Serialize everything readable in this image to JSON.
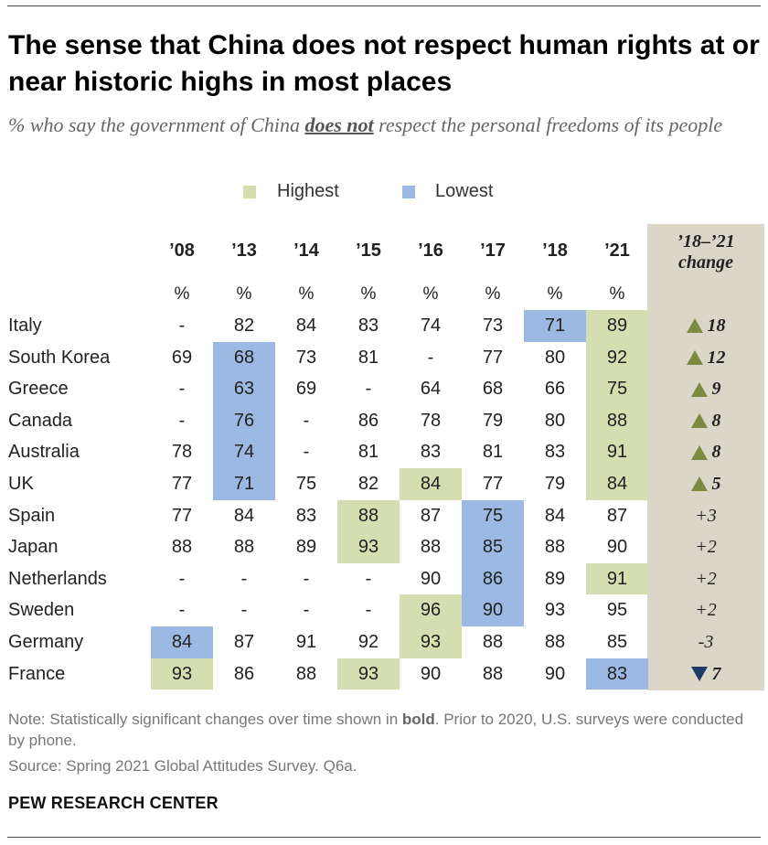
{
  "header": {
    "title": "The sense that China does not respect human rights at or near historic highs in most places",
    "subtitle_pre": "% who say the government of China ",
    "subtitle_emph": "does not",
    "subtitle_post": " respect the personal freedoms of its people"
  },
  "legend": {
    "highest_label": "Highest",
    "lowest_label": "Lowest",
    "highest_color": "#d5deb0",
    "lowest_color": "#9bb9e2"
  },
  "chart_data": {
    "type": "table",
    "title": "The sense that China does not respect human rights at or near historic highs in most places",
    "columns": [
      "’08",
      "’13",
      "’14",
      "’15",
      "’16",
      "’17",
      "’18",
      "’21"
    ],
    "unit_label": "%",
    "change_header_line1": "’18–’21",
    "change_header_line2": "change",
    "rows": [
      {
        "country": "Italy",
        "values": [
          "-",
          "82",
          "84",
          "83",
          "74",
          "73",
          "71",
          "89"
        ],
        "highest": [
          7
        ],
        "lowest": [
          6
        ],
        "change": {
          "text": "18",
          "dir": "up",
          "bold": true
        }
      },
      {
        "country": "South Korea",
        "values": [
          "69",
          "68",
          "73",
          "81",
          "-",
          "77",
          "80",
          "92"
        ],
        "highest": [
          7
        ],
        "lowest": [
          1
        ],
        "change": {
          "text": "12",
          "dir": "up",
          "bold": true
        }
      },
      {
        "country": "Greece",
        "values": [
          "-",
          "63",
          "69",
          "-",
          "64",
          "68",
          "66",
          "75"
        ],
        "highest": [
          7
        ],
        "lowest": [
          1
        ],
        "change": {
          "text": "9",
          "dir": "up",
          "bold": true
        }
      },
      {
        "country": "Canada",
        "values": [
          "-",
          "76",
          "-",
          "86",
          "78",
          "79",
          "80",
          "88"
        ],
        "highest": [
          7
        ],
        "lowest": [
          1
        ],
        "change": {
          "text": "8",
          "dir": "up",
          "bold": true
        }
      },
      {
        "country": "Australia",
        "values": [
          "78",
          "74",
          "-",
          "81",
          "83",
          "81",
          "83",
          "91"
        ],
        "highest": [
          7
        ],
        "lowest": [
          1
        ],
        "change": {
          "text": "8",
          "dir": "up",
          "bold": true
        }
      },
      {
        "country": "UK",
        "values": [
          "77",
          "71",
          "75",
          "82",
          "84",
          "77",
          "79",
          "84"
        ],
        "highest": [
          4,
          7
        ],
        "lowest": [
          1
        ],
        "change": {
          "text": "5",
          "dir": "up",
          "bold": true
        }
      },
      {
        "country": "Spain",
        "values": [
          "77",
          "84",
          "83",
          "88",
          "87",
          "75",
          "84",
          "87"
        ],
        "highest": [
          3
        ],
        "lowest": [
          5
        ],
        "change": {
          "text": "+3",
          "dir": "none",
          "bold": false
        }
      },
      {
        "country": "Japan",
        "values": [
          "88",
          "88",
          "89",
          "93",
          "88",
          "85",
          "88",
          "90"
        ],
        "highest": [
          3
        ],
        "lowest": [
          5
        ],
        "change": {
          "text": "+2",
          "dir": "none",
          "bold": false
        }
      },
      {
        "country": "Netherlands",
        "values": [
          "-",
          "-",
          "-",
          "-",
          "90",
          "86",
          "89",
          "91"
        ],
        "highest": [
          7
        ],
        "lowest": [
          5
        ],
        "change": {
          "text": "+2",
          "dir": "none",
          "bold": false
        }
      },
      {
        "country": "Sweden",
        "values": [
          "-",
          "-",
          "-",
          "-",
          "96",
          "90",
          "93",
          "95"
        ],
        "highest": [
          4
        ],
        "lowest": [
          5
        ],
        "change": {
          "text": "+2",
          "dir": "none",
          "bold": false
        }
      },
      {
        "country": "Germany",
        "values": [
          "84",
          "87",
          "91",
          "92",
          "93",
          "88",
          "88",
          "85"
        ],
        "highest": [
          4
        ],
        "lowest": [
          0
        ],
        "change": {
          "text": "-3",
          "dir": "none",
          "bold": false
        }
      },
      {
        "country": "France",
        "values": [
          "93",
          "86",
          "88",
          "93",
          "90",
          "88",
          "90",
          "83"
        ],
        "highest": [
          0,
          3
        ],
        "lowest": [
          7
        ],
        "change": {
          "text": "7",
          "dir": "down",
          "bold": true
        }
      }
    ]
  },
  "footer": {
    "note_pre": "Note: Statistically significant changes over time shown in ",
    "note_bold": "bold",
    "note_post": ". Prior to 2020, U.S. surveys were conducted by phone.",
    "source": "Source: Spring 2021 Global Attitudes Survey. Q6a.",
    "org": "PEW RESEARCH CENTER"
  }
}
